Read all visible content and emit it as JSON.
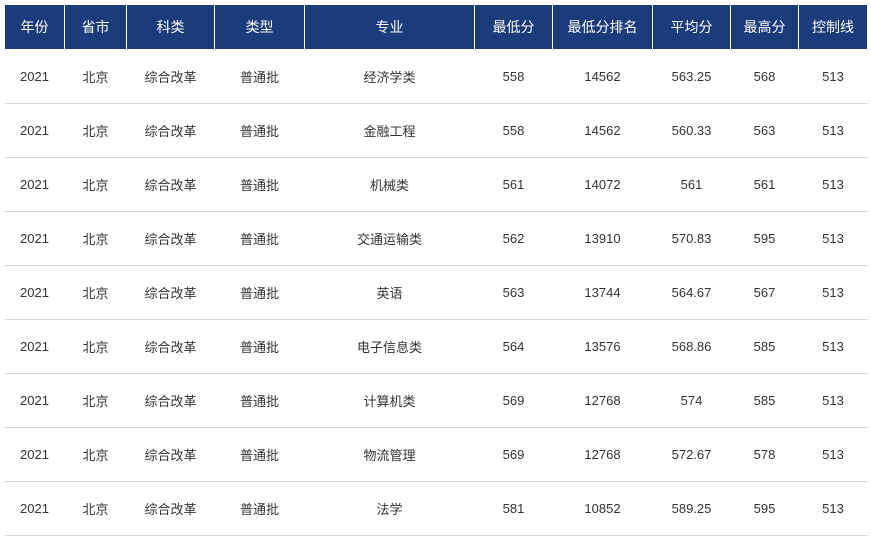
{
  "table": {
    "header_bg": "#1a3c7a",
    "header_color": "#ffffff",
    "row_border_color": "#d8d8d8",
    "cell_text_color": "#333333",
    "columns": [
      {
        "key": "year",
        "label": "年份",
        "class": "col-year"
      },
      {
        "key": "province",
        "label": "省市",
        "class": "col-province"
      },
      {
        "key": "subject",
        "label": "科类",
        "class": "col-subject"
      },
      {
        "key": "type",
        "label": "类型",
        "class": "col-type"
      },
      {
        "key": "major",
        "label": "专业",
        "class": "col-major"
      },
      {
        "key": "min",
        "label": "最低分",
        "class": "col-min"
      },
      {
        "key": "minrank",
        "label": "最低分排名",
        "class": "col-minrank"
      },
      {
        "key": "avg",
        "label": "平均分",
        "class": "col-avg"
      },
      {
        "key": "max",
        "label": "最高分",
        "class": "col-max"
      },
      {
        "key": "ctrl",
        "label": "控制线",
        "class": "col-ctrl"
      }
    ],
    "rows": [
      {
        "year": "2021",
        "province": "北京",
        "subject": "综合改革",
        "type": "普通批",
        "major": "经济学类",
        "min": "558",
        "minrank": "14562",
        "avg": "563.25",
        "max": "568",
        "ctrl": "513"
      },
      {
        "year": "2021",
        "province": "北京",
        "subject": "综合改革",
        "type": "普通批",
        "major": "金融工程",
        "min": "558",
        "minrank": "14562",
        "avg": "560.33",
        "max": "563",
        "ctrl": "513"
      },
      {
        "year": "2021",
        "province": "北京",
        "subject": "综合改革",
        "type": "普通批",
        "major": "机械类",
        "min": "561",
        "minrank": "14072",
        "avg": "561",
        "max": "561",
        "ctrl": "513"
      },
      {
        "year": "2021",
        "province": "北京",
        "subject": "综合改革",
        "type": "普通批",
        "major": "交通运输类",
        "min": "562",
        "minrank": "13910",
        "avg": "570.83",
        "max": "595",
        "ctrl": "513"
      },
      {
        "year": "2021",
        "province": "北京",
        "subject": "综合改革",
        "type": "普通批",
        "major": "英语",
        "min": "563",
        "minrank": "13744",
        "avg": "564.67",
        "max": "567",
        "ctrl": "513"
      },
      {
        "year": "2021",
        "province": "北京",
        "subject": "综合改革",
        "type": "普通批",
        "major": "电子信息类",
        "min": "564",
        "minrank": "13576",
        "avg": "568.86",
        "max": "585",
        "ctrl": "513"
      },
      {
        "year": "2021",
        "province": "北京",
        "subject": "综合改革",
        "type": "普通批",
        "major": "计算机类",
        "min": "569",
        "minrank": "12768",
        "avg": "574",
        "max": "585",
        "ctrl": "513"
      },
      {
        "year": "2021",
        "province": "北京",
        "subject": "综合改革",
        "type": "普通批",
        "major": "物流管理",
        "min": "569",
        "minrank": "12768",
        "avg": "572.67",
        "max": "578",
        "ctrl": "513"
      },
      {
        "year": "2021",
        "province": "北京",
        "subject": "综合改革",
        "type": "普通批",
        "major": "法学",
        "min": "581",
        "minrank": "10852",
        "avg": "589.25",
        "max": "595",
        "ctrl": "513"
      }
    ]
  }
}
